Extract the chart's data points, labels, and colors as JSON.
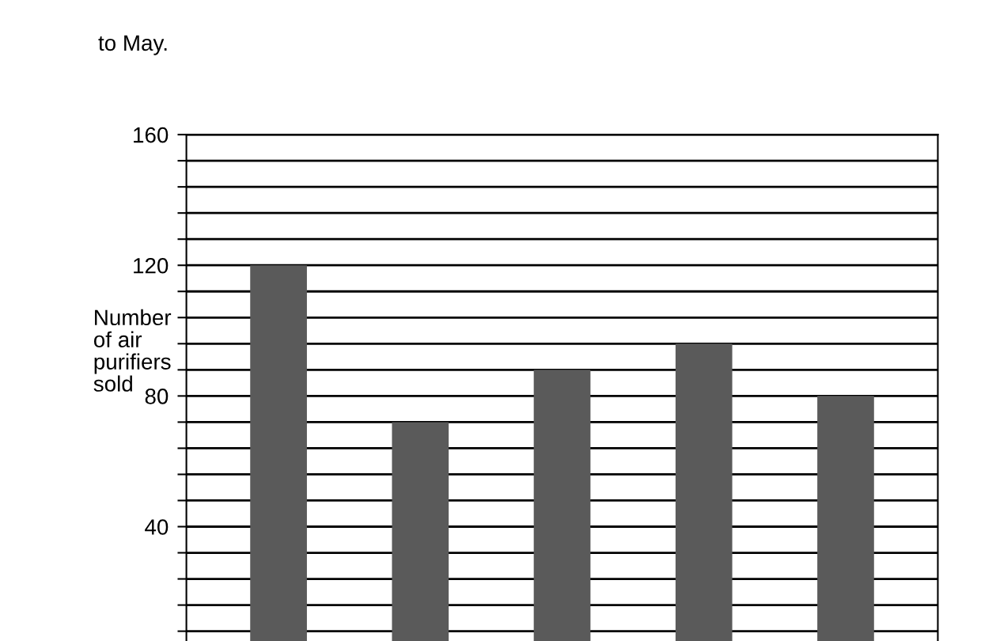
{
  "chart_data": {
    "type": "bar",
    "title": "to May.",
    "ylabel": "Number\nof air\npurifiers\nsold",
    "categories": [
      null,
      null,
      null,
      null,
      null
    ],
    "values": [
      120,
      72,
      88,
      96,
      80
    ],
    "color": "#5a5a5a",
    "ylim": [
      5,
      160
    ],
    "yticks": [
      {
        "value": 8,
        "label": null
      },
      {
        "value": 16,
        "label": null
      },
      {
        "value": 24,
        "label": null
      },
      {
        "value": 32,
        "label": null
      },
      40,
      {
        "value": 48,
        "label": null
      },
      {
        "value": 56,
        "label": null
      },
      {
        "value": 64,
        "label": null
      },
      {
        "value": 72,
        "label": null
      },
      80,
      {
        "value": 88,
        "label": null
      },
      {
        "value": 96,
        "label": null
      },
      {
        "value": 104,
        "label": null
      },
      {
        "value": 112,
        "label": null
      },
      120,
      {
        "value": 128,
        "label": null
      },
      {
        "value": 136,
        "label": null
      },
      {
        "value": 144,
        "label": null
      },
      {
        "value": 152,
        "label": null
      },
      160
    ],
    "grid": "y"
  }
}
